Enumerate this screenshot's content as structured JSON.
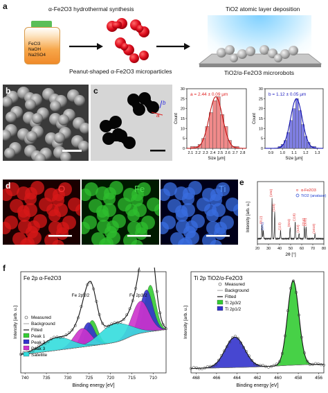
{
  "panels": {
    "a": {
      "label": "a",
      "synthesis_title": "α-Fe2O3 hydrothermal synthesis",
      "bottle_text": [
        "FeCl3",
        "NaOH",
        "Na2SO4"
      ],
      "microparticles_caption": "Peanut-shaped α-Fe2O3 microparticles",
      "ald_title": "TiO2 atomic layer deposition",
      "robots_caption": "TiO2/α-Fe2O3 microrobots"
    },
    "b": {
      "label": "b"
    },
    "c": {
      "label": "c",
      "inset_a": "a",
      "inset_b": "b",
      "hist_a": {
        "annotation": "a = 2.44 ± 0.09 μm",
        "ylabel": "Count",
        "xlabel": "Size [μm]",
        "xticks": [
          "2.1",
          "2.2",
          "2.3",
          "2.4",
          "2.5",
          "2.6",
          "2.7",
          "2.8"
        ],
        "yticks": [
          "0",
          "5",
          "10",
          "15",
          "20",
          "25",
          "30"
        ]
      },
      "hist_b": {
        "annotation": "b = 1.12 ± 0.05 μm",
        "ylabel": "Count",
        "xlabel": "Size [μm]",
        "xticks": [
          "0.9",
          "1.0",
          "1.1",
          "1.2",
          "1.3"
        ],
        "yticks": [
          "0",
          "5",
          "10",
          "15",
          "20",
          "25",
          "30"
        ]
      }
    },
    "d": {
      "label": "d",
      "maps": [
        "O",
        "Fe",
        "Ti"
      ]
    },
    "e": {
      "label": "e",
      "legend": [
        "α-Fe2O3",
        "TiO2 (anatase)"
      ],
      "ylabel": "Intensity [arb. u.]",
      "xlabel": "2θ [°]",
      "xticks": [
        "20",
        "30",
        "40",
        "50",
        "60",
        "70",
        "80"
      ],
      "peak_labels": [
        "(012)",
        "(101)",
        "(104)",
        "(110)",
        "(113)",
        "(024)",
        "(116)",
        "(122)",
        "(214)",
        "(300)",
        "(1010)"
      ]
    },
    "f": {
      "label": "f",
      "fe": {
        "title": "Fe 2p α-Fe2O3",
        "label_p12": "Fe 2p1/2",
        "label_p32": "Fe 2p3/2",
        "ylabel": "Intensity [arb. u.]",
        "xlabel": "Binding energy [eV]",
        "xticks": [
          "740",
          "735",
          "730",
          "725",
          "720",
          "715",
          "710"
        ],
        "legend": [
          "Measured",
          "Background",
          "Fitted",
          "Peak 1",
          "Peak 2",
          "Peak 3",
          "Satellite"
        ]
      },
      "ti": {
        "title": "Ti 2p TiO2/α-Fe2O3",
        "ylabel": "Intensity [arb. u.]",
        "xlabel": "Binding energy [eV]",
        "xticks": [
          "468",
          "466",
          "464",
          "462",
          "460",
          "458",
          "456"
        ],
        "legend": [
          "Measured",
          "Background",
          "Fitted",
          "Ti 2p3/2",
          "Ti 2p1/2"
        ]
      }
    }
  },
  "chart_data": [
    {
      "type": "bar",
      "title": "",
      "annotation": "a = 2.44 ± 0.09 μm",
      "xlabel": "Size [μm]",
      "ylabel": "Count",
      "xlim": [
        2.05,
        2.85
      ],
      "ylim": [
        0,
        30
      ],
      "categories": [
        2.125,
        2.175,
        2.225,
        2.275,
        2.325,
        2.375,
        2.425,
        2.475,
        2.525,
        2.575,
        2.625,
        2.675,
        2.725
      ],
      "values": [
        1,
        1,
        2,
        5,
        11,
        18,
        24,
        26,
        17,
        11,
        4,
        1,
        1
      ],
      "color": "#f08a8a"
    },
    {
      "type": "bar",
      "title": "",
      "annotation": "b = 1.12 ± 0.05 μm",
      "xlabel": "Size [μm]",
      "ylabel": "Count",
      "xlim": [
        0.85,
        1.35
      ],
      "ylim": [
        0,
        30
      ],
      "categories": [
        0.975,
        1.0,
        1.025,
        1.05,
        1.075,
        1.1,
        1.125,
        1.15,
        1.175,
        1.2,
        1.225,
        1.25,
        1.275
      ],
      "values": [
        1,
        2,
        4,
        8,
        14,
        20,
        25,
        19,
        12,
        6,
        3,
        1,
        1
      ],
      "color": "#8080e6"
    },
    {
      "type": "line",
      "title": "",
      "xlabel": "2θ [°]",
      "ylabel": "Intensity [arb. u.]",
      "xlim": [
        20,
        80
      ],
      "peaks": [
        {
          "x": 24.1,
          "h": 0.35,
          "label": "(012)"
        },
        {
          "x": 25.3,
          "h": 0.2,
          "label": "(101)"
        },
        {
          "x": 33.2,
          "h": 1.0,
          "label": "(104)"
        },
        {
          "x": 35.6,
          "h": 0.65,
          "label": "(110)"
        },
        {
          "x": 40.9,
          "h": 0.2,
          "label": "(113)"
        },
        {
          "x": 49.5,
          "h": 0.28,
          "label": "(024)"
        },
        {
          "x": 54.1,
          "h": 0.42,
          "label": "(116)"
        },
        {
          "x": 57.6,
          "h": 0.14,
          "label": "(122)"
        },
        {
          "x": 62.4,
          "h": 0.3,
          "label": "(214)"
        },
        {
          "x": 64.0,
          "h": 0.3,
          "label": "(300)"
        },
        {
          "x": 72.0,
          "h": 0.12,
          "label": "(1010)"
        }
      ]
    },
    {
      "type": "area",
      "title": "Fe 2p α-Fe2O3",
      "xlabel": "Binding energy [eV]",
      "ylabel": "Intensity [arb. u.]",
      "xlim": [
        741,
        707
      ],
      "components": [
        {
          "name": "Peak 1",
          "center": 710.7,
          "amp": 0.55,
          "width": 1.3,
          "color": "#33cc33"
        },
        {
          "name": "Peak 2",
          "center": 711.6,
          "amp": 0.5,
          "width": 1.5,
          "color": "#3333cc"
        },
        {
          "name": "Peak 3",
          "center": 713.0,
          "amp": 0.38,
          "width": 2.0,
          "color": "#cc33cc"
        },
        {
          "name": "Peak 1",
          "center": 724.3,
          "amp": 0.3,
          "width": 1.3,
          "color": "#33cc33"
        },
        {
          "name": "Peak 2",
          "center": 725.2,
          "amp": 0.28,
          "width": 1.5,
          "color": "#3333cc"
        },
        {
          "name": "Peak 3",
          "center": 726.6,
          "amp": 0.22,
          "width": 2.0,
          "color": "#cc33cc"
        },
        {
          "name": "Satellite",
          "center": 719.0,
          "amp": 0.22,
          "width": 3.5,
          "color": "#33dddd"
        },
        {
          "name": "Satellite",
          "center": 732.5,
          "amp": 0.15,
          "width": 3.5,
          "color": "#33dddd"
        }
      ]
    },
    {
      "type": "area",
      "title": "Ti 2p TiO2/α-Fe2O3",
      "xlabel": "Binding energy [eV]",
      "ylabel": "Intensity [arb. u.]",
      "xlim": [
        468.5,
        455.5
      ],
      "components": [
        {
          "name": "Ti 2p3/2",
          "center": 458.5,
          "amp": 1.0,
          "width": 0.55,
          "color": "#33cc33"
        },
        {
          "name": "Ti 2p1/2",
          "center": 464.2,
          "amp": 0.36,
          "width": 0.95,
          "color": "#3333cc"
        }
      ]
    }
  ]
}
